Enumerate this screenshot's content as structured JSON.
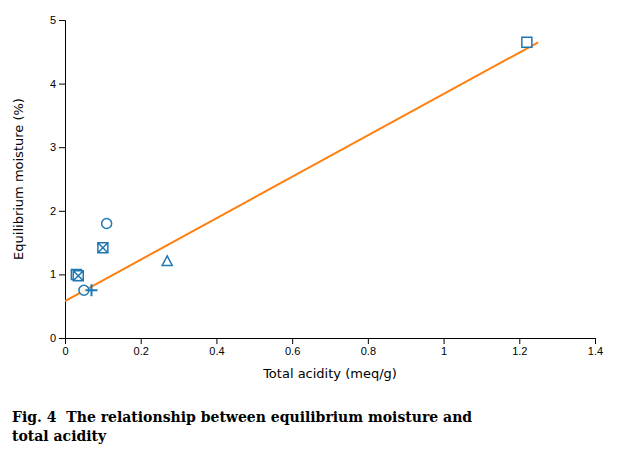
{
  "chart_data": {
    "type": "scatter",
    "title": "Fig. 4  The relationship between equilibrium moisture and\ntotal acidity",
    "x_label": "Total acidity (meq/g)",
    "y_label": "Equilibrium moisture (%)",
    "xlim": [
      0,
      1.4
    ],
    "ylim": [
      0,
      5
    ],
    "xticks": [
      0,
      0.2,
      0.4,
      0.6,
      0.8,
      1,
      1.2,
      1.4
    ],
    "yticks": [
      0,
      1,
      2,
      3,
      4,
      5
    ],
    "series": [
      {
        "type": "line",
        "x": [
          0.0,
          1.25
        ],
        "values": [
          0.58,
          4.65
        ]
      },
      {
        "marker": "square",
        "x": [
          0.03,
          1.22
        ],
        "values": [
          1.0,
          4.65
        ]
      },
      {
        "marker": "boxtimes",
        "x": [
          0.035,
          0.1
        ],
        "values": [
          0.98,
          1.42
        ]
      },
      {
        "marker": "circle",
        "x": [
          0.05,
          0.11
        ],
        "values": [
          0.75,
          1.8
        ]
      },
      {
        "marker": "plus",
        "x": [
          0.07
        ],
        "values": [
          0.75
        ]
      },
      {
        "marker": "triangle",
        "x": [
          0.27
        ],
        "values": [
          1.2
        ]
      }
    ]
  }
}
